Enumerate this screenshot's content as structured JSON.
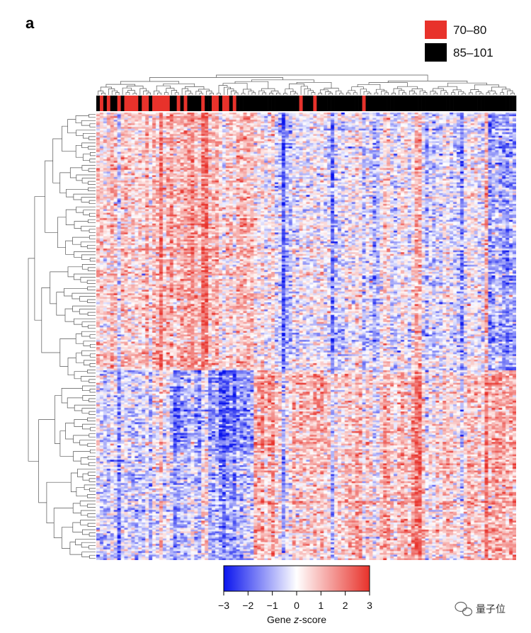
{
  "panel_label": "a",
  "legend": {
    "items": [
      {
        "label": "70–80",
        "color": "#e8322b"
      },
      {
        "label": "85–101",
        "color": "#000000"
      }
    ]
  },
  "colorbar": {
    "title_prefix": "Gene ",
    "title_italic": "z",
    "title_suffix": "-score",
    "ticks": [
      "−3",
      "−2",
      "−1",
      "0",
      "1",
      "2",
      "3"
    ],
    "min": -3,
    "max": 3,
    "colors": {
      "low": "#0a14ee",
      "mid": "#ffffff",
      "high": "#e8322b"
    }
  },
  "watermark": {
    "text": "量子位",
    "icon": "wechat-icon"
  },
  "chart_data": {
    "type": "heatmap",
    "rows_description_only": false,
    "n_columns": 120,
    "n_rows": 250,
    "value_range": [
      -3,
      3
    ],
    "column_annotation": [
      "70–80",
      "85–101"
    ],
    "row_cluster_split": 0.575,
    "col_cluster_split": 0.375,
    "dendrograms": {
      "top": true,
      "left": true
    }
  }
}
